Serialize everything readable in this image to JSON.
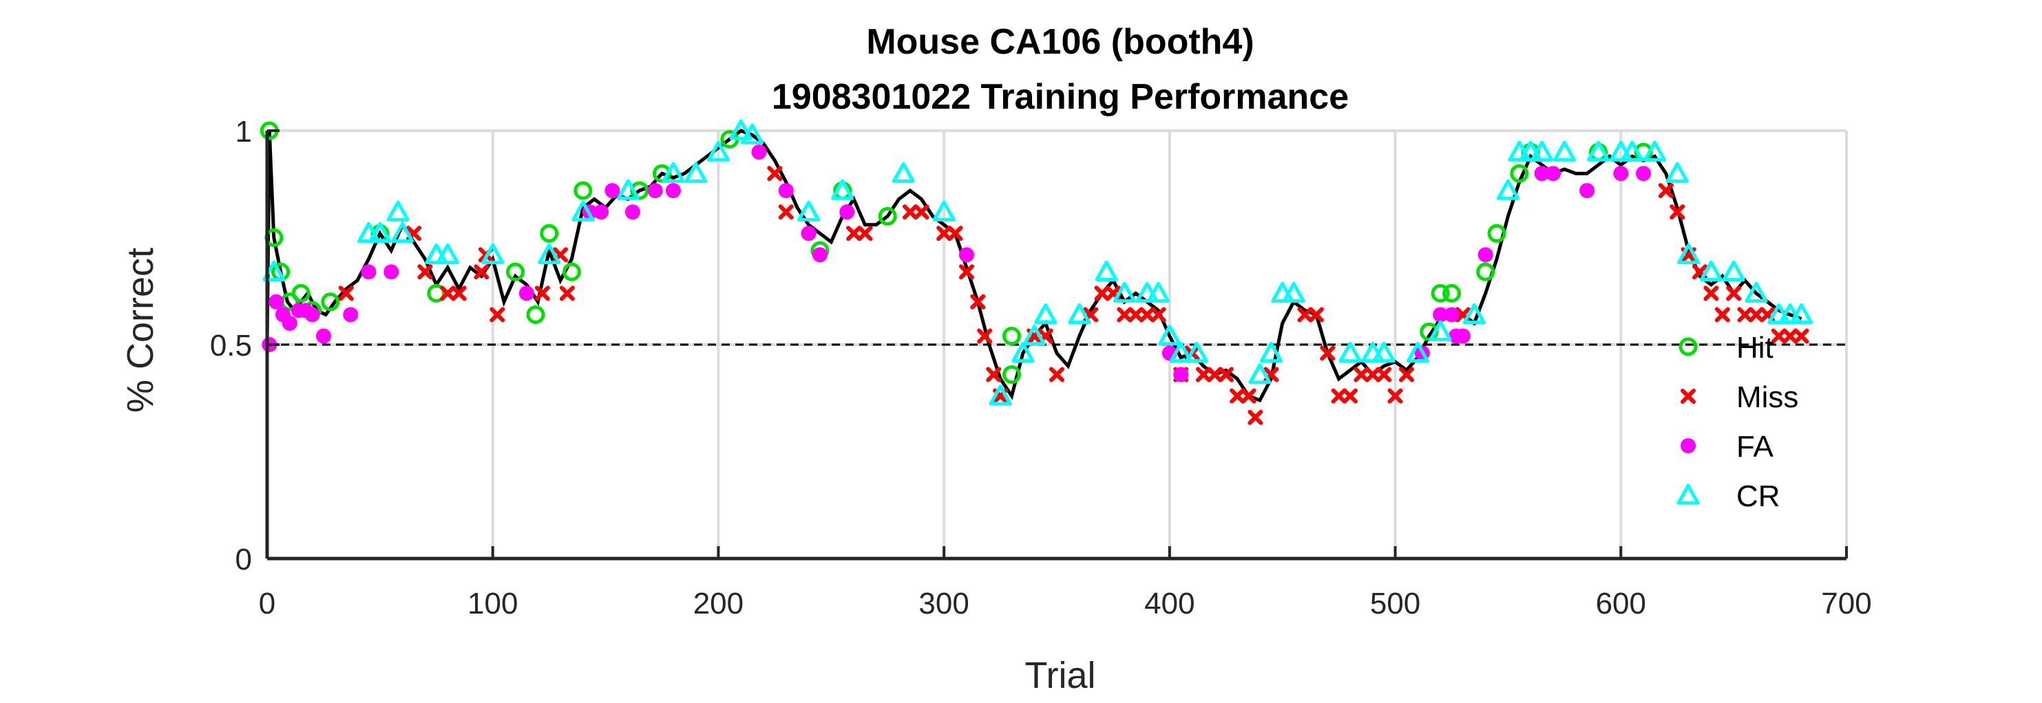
{
  "chart_data": {
    "type": "scatter",
    "title": [
      "Mouse CA106 (booth4)",
      "1908301022 Training Performance"
    ],
    "xlabel": "Trial",
    "ylabel": "% Correct",
    "xlim": [
      0,
      700
    ],
    "ylim": [
      0,
      1
    ],
    "xticks": [
      "0",
      "100",
      "200",
      "300",
      "400",
      "500",
      "600",
      "700"
    ],
    "yticks": [
      "0",
      "0.5",
      "1"
    ],
    "grid": true,
    "legend_position": "bottom-right",
    "reference_line": {
      "y": 0.5,
      "style": "dashed",
      "color": "#000000"
    },
    "line_color": "#000000",
    "performance_curve": [
      [
        0,
        0.5
      ],
      [
        1,
        1.0
      ],
      [
        3,
        0.75
      ],
      [
        6,
        0.67
      ],
      [
        9,
        0.6
      ],
      [
        12,
        0.58
      ],
      [
        15,
        0.6
      ],
      [
        18,
        0.62
      ],
      [
        22,
        0.58
      ],
      [
        26,
        0.57
      ],
      [
        30,
        0.6
      ],
      [
        35,
        0.63
      ],
      [
        40,
        0.65
      ],
      [
        45,
        0.7
      ],
      [
        50,
        0.76
      ],
      [
        55,
        0.72
      ],
      [
        60,
        0.78
      ],
      [
        65,
        0.74
      ],
      [
        70,
        0.7
      ],
      [
        75,
        0.64
      ],
      [
        80,
        0.68
      ],
      [
        85,
        0.63
      ],
      [
        90,
        0.68
      ],
      [
        95,
        0.66
      ],
      [
        100,
        0.7
      ],
      [
        105,
        0.6
      ],
      [
        110,
        0.66
      ],
      [
        115,
        0.64
      ],
      [
        120,
        0.6
      ],
      [
        125,
        0.72
      ],
      [
        130,
        0.65
      ],
      [
        135,
        0.7
      ],
      [
        140,
        0.82
      ],
      [
        145,
        0.84
      ],
      [
        150,
        0.82
      ],
      [
        155,
        0.85
      ],
      [
        160,
        0.84
      ],
      [
        165,
        0.86
      ],
      [
        170,
        0.87
      ],
      [
        175,
        0.9
      ],
      [
        180,
        0.89
      ],
      [
        185,
        0.9
      ],
      [
        190,
        0.92
      ],
      [
        195,
        0.94
      ],
      [
        200,
        0.96
      ],
      [
        205,
        0.98
      ],
      [
        210,
        1.0
      ],
      [
        215,
        0.99
      ],
      [
        220,
        0.97
      ],
      [
        225,
        0.93
      ],
      [
        230,
        0.88
      ],
      [
        235,
        0.82
      ],
      [
        240,
        0.78
      ],
      [
        245,
        0.76
      ],
      [
        250,
        0.74
      ],
      [
        255,
        0.8
      ],
      [
        260,
        0.84
      ],
      [
        265,
        0.78
      ],
      [
        270,
        0.78
      ],
      [
        275,
        0.8
      ],
      [
        280,
        0.84
      ],
      [
        285,
        0.86
      ],
      [
        290,
        0.84
      ],
      [
        295,
        0.8
      ],
      [
        300,
        0.78
      ],
      [
        305,
        0.76
      ],
      [
        310,
        0.68
      ],
      [
        315,
        0.6
      ],
      [
        320,
        0.5
      ],
      [
        325,
        0.42
      ],
      [
        330,
        0.38
      ],
      [
        335,
        0.48
      ],
      [
        340,
        0.52
      ],
      [
        345,
        0.55
      ],
      [
        350,
        0.48
      ],
      [
        355,
        0.45
      ],
      [
        360,
        0.52
      ],
      [
        365,
        0.58
      ],
      [
        370,
        0.62
      ],
      [
        375,
        0.65
      ],
      [
        380,
        0.6
      ],
      [
        385,
        0.62
      ],
      [
        390,
        0.6
      ],
      [
        395,
        0.58
      ],
      [
        400,
        0.52
      ],
      [
        405,
        0.47
      ],
      [
        410,
        0.48
      ],
      [
        415,
        0.45
      ],
      [
        420,
        0.43
      ],
      [
        425,
        0.44
      ],
      [
        430,
        0.42
      ],
      [
        435,
        0.38
      ],
      [
        440,
        0.37
      ],
      [
        445,
        0.42
      ],
      [
        450,
        0.55
      ],
      [
        455,
        0.6
      ],
      [
        460,
        0.58
      ],
      [
        465,
        0.57
      ],
      [
        470,
        0.48
      ],
      [
        475,
        0.42
      ],
      [
        480,
        0.44
      ],
      [
        485,
        0.46
      ],
      [
        490,
        0.43
      ],
      [
        495,
        0.45
      ],
      [
        500,
        0.46
      ],
      [
        505,
        0.44
      ],
      [
        510,
        0.47
      ],
      [
        515,
        0.52
      ],
      [
        520,
        0.56
      ],
      [
        525,
        0.58
      ],
      [
        530,
        0.57
      ],
      [
        535,
        0.55
      ],
      [
        540,
        0.62
      ],
      [
        545,
        0.7
      ],
      [
        550,
        0.8
      ],
      [
        555,
        0.88
      ],
      [
        560,
        0.94
      ],
      [
        565,
        0.92
      ],
      [
        570,
        0.9
      ],
      [
        575,
        0.91
      ],
      [
        580,
        0.9
      ],
      [
        585,
        0.9
      ],
      [
        590,
        0.92
      ],
      [
        595,
        0.94
      ],
      [
        600,
        0.92
      ],
      [
        605,
        0.94
      ],
      [
        610,
        0.93
      ],
      [
        615,
        0.94
      ],
      [
        620,
        0.9
      ],
      [
        625,
        0.82
      ],
      [
        630,
        0.72
      ],
      [
        635,
        0.66
      ],
      [
        640,
        0.64
      ],
      [
        645,
        0.66
      ],
      [
        650,
        0.62
      ],
      [
        655,
        0.65
      ],
      [
        660,
        0.62
      ],
      [
        665,
        0.6
      ],
      [
        670,
        0.58
      ],
      [
        675,
        0.57
      ],
      [
        680,
        0.56
      ]
    ],
    "series": [
      {
        "name": "Hit",
        "marker": "circle-open",
        "color": "#00e000",
        "points": [
          [
            1,
            1.0
          ],
          [
            3,
            0.75
          ],
          [
            6,
            0.67
          ],
          [
            10,
            0.6
          ],
          [
            15,
            0.62
          ],
          [
            20,
            0.58
          ],
          [
            28,
            0.6
          ],
          [
            50,
            0.76
          ],
          [
            75,
            0.62
          ],
          [
            110,
            0.67
          ],
          [
            119,
            0.57
          ],
          [
            125,
            0.76
          ],
          [
            135,
            0.67
          ],
          [
            140,
            0.86
          ],
          [
            165,
            0.86
          ],
          [
            175,
            0.9
          ],
          [
            205,
            0.98
          ],
          [
            245,
            0.72
          ],
          [
            255,
            0.86
          ],
          [
            275,
            0.8
          ],
          [
            330,
            0.43
          ],
          [
            330,
            0.52
          ],
          [
            515,
            0.53
          ],
          [
            520,
            0.62
          ],
          [
            525,
            0.62
          ],
          [
            540,
            0.67
          ],
          [
            545,
            0.76
          ],
          [
            555,
            0.9
          ],
          [
            560,
            0.95
          ],
          [
            590,
            0.95
          ],
          [
            610,
            0.95
          ]
        ]
      },
      {
        "name": "Miss",
        "marker": "x",
        "color": "#ff0000",
        "points": [
          [
            35,
            0.62
          ],
          [
            65,
            0.76
          ],
          [
            70,
            0.67
          ],
          [
            80,
            0.62
          ],
          [
            85,
            0.62
          ],
          [
            95,
            0.67
          ],
          [
            97,
            0.71
          ],
          [
            102,
            0.57
          ],
          [
            122,
            0.62
          ],
          [
            130,
            0.71
          ],
          [
            133,
            0.62
          ],
          [
            225,
            0.9
          ],
          [
            230,
            0.81
          ],
          [
            260,
            0.76
          ],
          [
            265,
            0.76
          ],
          [
            285,
            0.81
          ],
          [
            290,
            0.81
          ],
          [
            300,
            0.76
          ],
          [
            305,
            0.76
          ],
          [
            310,
            0.67
          ],
          [
            315,
            0.6
          ],
          [
            318,
            0.52
          ],
          [
            322,
            0.43
          ],
          [
            325,
            0.38
          ],
          [
            340,
            0.52
          ],
          [
            345,
            0.52
          ],
          [
            350,
            0.43
          ],
          [
            365,
            0.57
          ],
          [
            370,
            0.62
          ],
          [
            375,
            0.62
          ],
          [
            380,
            0.57
          ],
          [
            385,
            0.57
          ],
          [
            390,
            0.57
          ],
          [
            395,
            0.57
          ],
          [
            405,
            0.43
          ],
          [
            410,
            0.48
          ],
          [
            415,
            0.43
          ],
          [
            420,
            0.43
          ],
          [
            425,
            0.43
          ],
          [
            430,
            0.38
          ],
          [
            435,
            0.38
          ],
          [
            438,
            0.33
          ],
          [
            445,
            0.43
          ],
          [
            460,
            0.57
          ],
          [
            465,
            0.57
          ],
          [
            470,
            0.48
          ],
          [
            475,
            0.38
          ],
          [
            480,
            0.38
          ],
          [
            485,
            0.43
          ],
          [
            490,
            0.43
          ],
          [
            495,
            0.43
          ],
          [
            500,
            0.38
          ],
          [
            505,
            0.43
          ],
          [
            530,
            0.57
          ],
          [
            620,
            0.86
          ],
          [
            625,
            0.81
          ],
          [
            630,
            0.71
          ],
          [
            635,
            0.67
          ],
          [
            640,
            0.62
          ],
          [
            645,
            0.57
          ],
          [
            650,
            0.62
          ],
          [
            655,
            0.57
          ],
          [
            660,
            0.57
          ],
          [
            665,
            0.57
          ],
          [
            670,
            0.52
          ],
          [
            675,
            0.52
          ],
          [
            680,
            0.52
          ]
        ]
      },
      {
        "name": "FA",
        "marker": "circle-filled",
        "color": "#ff00ff",
        "points": [
          [
            1,
            0.5
          ],
          [
            4,
            0.6
          ],
          [
            7,
            0.57
          ],
          [
            10,
            0.55
          ],
          [
            14,
            0.58
          ],
          [
            17,
            0.58
          ],
          [
            20,
            0.57
          ],
          [
            25,
            0.52
          ],
          [
            37,
            0.57
          ],
          [
            45,
            0.67
          ],
          [
            55,
            0.67
          ],
          [
            115,
            0.62
          ],
          [
            143,
            0.81
          ],
          [
            148,
            0.81
          ],
          [
            153,
            0.86
          ],
          [
            162,
            0.81
          ],
          [
            172,
            0.86
          ],
          [
            180,
            0.86
          ],
          [
            218,
            0.95
          ],
          [
            230,
            0.86
          ],
          [
            240,
            0.76
          ],
          [
            245,
            0.71
          ],
          [
            257,
            0.81
          ],
          [
            310,
            0.71
          ],
          [
            400,
            0.48
          ],
          [
            405,
            0.43
          ],
          [
            512,
            0.48
          ],
          [
            520,
            0.57
          ],
          [
            525,
            0.57
          ],
          [
            527,
            0.52
          ],
          [
            530,
            0.52
          ],
          [
            540,
            0.71
          ],
          [
            565,
            0.9
          ],
          [
            570,
            0.9
          ],
          [
            585,
            0.86
          ],
          [
            600,
            0.9
          ],
          [
            610,
            0.9
          ]
        ]
      },
      {
        "name": "CR",
        "marker": "triangle-open",
        "color": "#00ffff",
        "points": [
          [
            3,
            0.67
          ],
          [
            45,
            0.76
          ],
          [
            50,
            0.76
          ],
          [
            58,
            0.81
          ],
          [
            60,
            0.76
          ],
          [
            75,
            0.71
          ],
          [
            80,
            0.71
          ],
          [
            100,
            0.71
          ],
          [
            125,
            0.71
          ],
          [
            140,
            0.81
          ],
          [
            160,
            0.86
          ],
          [
            180,
            0.9
          ],
          [
            190,
            0.9
          ],
          [
            200,
            0.95
          ],
          [
            210,
            1.0
          ],
          [
            215,
            0.99
          ],
          [
            240,
            0.81
          ],
          [
            255,
            0.86
          ],
          [
            282,
            0.9
          ],
          [
            300,
            0.81
          ],
          [
            325,
            0.38
          ],
          [
            335,
            0.48
          ],
          [
            340,
            0.52
          ],
          [
            345,
            0.57
          ],
          [
            360,
            0.57
          ],
          [
            372,
            0.67
          ],
          [
            380,
            0.62
          ],
          [
            390,
            0.62
          ],
          [
            395,
            0.62
          ],
          [
            400,
            0.52
          ],
          [
            405,
            0.48
          ],
          [
            412,
            0.48
          ],
          [
            440,
            0.43
          ],
          [
            445,
            0.48
          ],
          [
            450,
            0.62
          ],
          [
            455,
            0.62
          ],
          [
            480,
            0.48
          ],
          [
            490,
            0.48
          ],
          [
            495,
            0.48
          ],
          [
            510,
            0.48
          ],
          [
            520,
            0.53
          ],
          [
            535,
            0.57
          ],
          [
            550,
            0.86
          ],
          [
            555,
            0.95
          ],
          [
            560,
            0.95
          ],
          [
            565,
            0.95
          ],
          [
            575,
            0.95
          ],
          [
            590,
            0.95
          ],
          [
            600,
            0.95
          ],
          [
            605,
            0.95
          ],
          [
            615,
            0.95
          ],
          [
            625,
            0.9
          ],
          [
            630,
            0.71
          ],
          [
            640,
            0.67
          ],
          [
            650,
            0.67
          ],
          [
            660,
            0.62
          ],
          [
            670,
            0.57
          ],
          [
            675,
            0.57
          ],
          [
            680,
            0.57
          ]
        ]
      }
    ]
  }
}
